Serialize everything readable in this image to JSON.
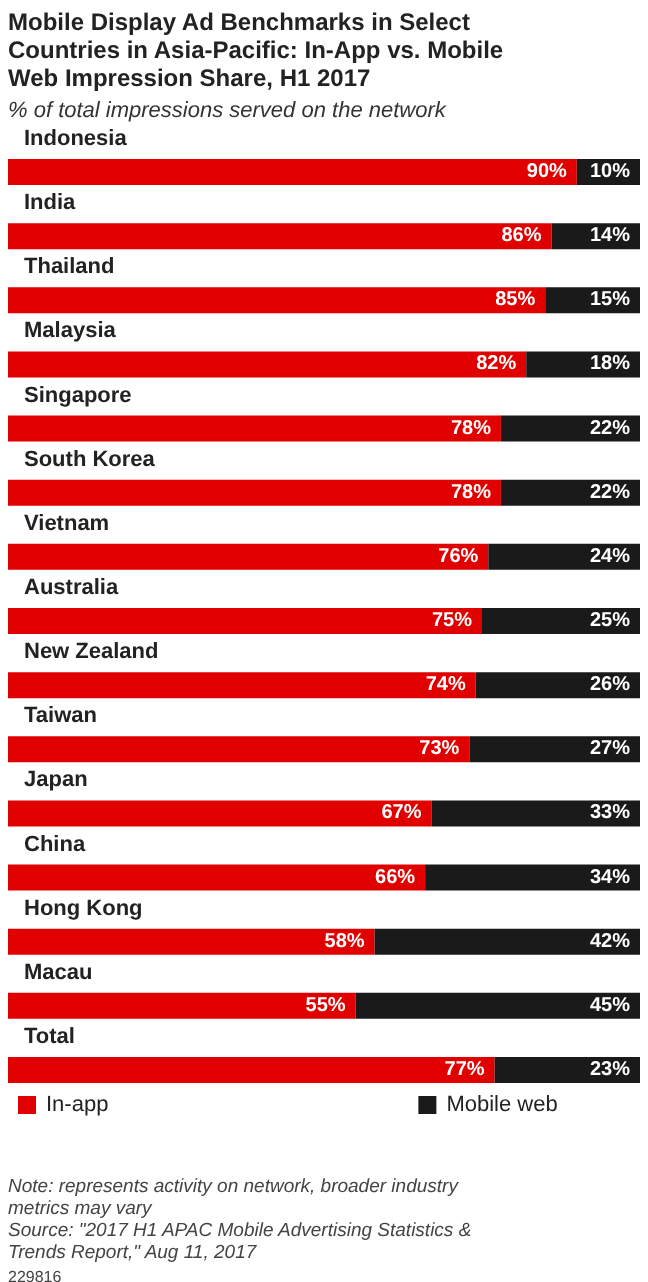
{
  "chart_data": {
    "type": "bar",
    "orientation": "horizontal",
    "stacked": true,
    "title": "Mobile Display Ad Benchmarks in Select Countries in Asia-Pacific: In-App vs. Mobile Web Impression Share, H1 2017",
    "subtitle": "% of total impressions served on the network",
    "categories": [
      "Indonesia",
      "India",
      "Thailand",
      "Malaysia",
      "Singapore",
      "South Korea",
      "Vietnam",
      "Australia",
      "New Zealand",
      "Taiwan",
      "Japan",
      "China",
      "Hong Kong",
      "Macau",
      "Total"
    ],
    "series": [
      {
        "name": "In-app",
        "color": "#e00000",
        "values": [
          90,
          86,
          85,
          82,
          78,
          78,
          76,
          75,
          74,
          73,
          67,
          66,
          58,
          55,
          77
        ],
        "value_labels": [
          "90%",
          "86%",
          "85%",
          "82%",
          "78%",
          "78%",
          "76%",
          "75%",
          "74%",
          "73%",
          "67%",
          "66%",
          "58%",
          "55%",
          "77%"
        ]
      },
      {
        "name": "Mobile web",
        "color": "#1a1a1a",
        "values": [
          10,
          14,
          15,
          18,
          22,
          22,
          24,
          25,
          26,
          27,
          33,
          34,
          42,
          45,
          23
        ],
        "value_labels": [
          "10%",
          "14%",
          "15%",
          "18%",
          "22%",
          "22%",
          "24%",
          "25%",
          "26%",
          "27%",
          "33%",
          "34%",
          "42%",
          "45%",
          "23%"
        ]
      }
    ],
    "xlim": [
      0,
      100
    ],
    "tick_labels": "y",
    "legend": "bottom",
    "annotations": [
      "Note: represents activity on network, broader industry metrics may vary",
      "Source: \"2017 H1 APAC Mobile Advertising Statistics & Trends Report,\" Aug 11, 2017",
      "229816"
    ]
  }
}
